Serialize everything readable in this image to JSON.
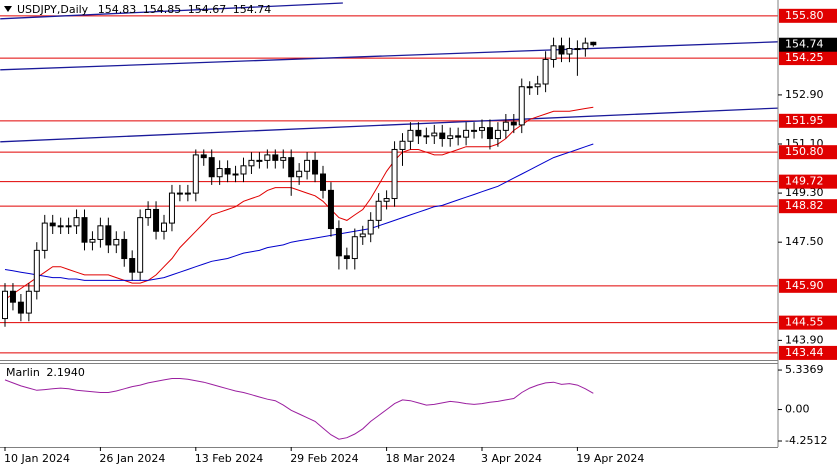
{
  "chart_data": [
    {
      "type": "candlestick",
      "title": "USDJPY,Daily",
      "categories": [
        "10 Jan 2024",
        null,
        null,
        null,
        null,
        null,
        null,
        null,
        null,
        null,
        null,
        null,
        "26 Jan 2024",
        null,
        null,
        null,
        null,
        null,
        null,
        null,
        null,
        null,
        null,
        null,
        "13 Feb 2024",
        null,
        null,
        null,
        null,
        null,
        null,
        null,
        null,
        null,
        null,
        null,
        "29 Feb 2024",
        null,
        null,
        null,
        null,
        null,
        null,
        null,
        null,
        null,
        null,
        null,
        "18 Mar 2024",
        null,
        null,
        null,
        null,
        null,
        null,
        null,
        null,
        null,
        null,
        null,
        "3 Apr 2024",
        null,
        null,
        null,
        null,
        null,
        null,
        null,
        null,
        null,
        null,
        null,
        "19 Apr 2024",
        null,
        null
      ],
      "open": [
        144.7,
        145.7,
        145.3,
        144.9,
        145.7,
        147.2,
        148.2,
        148.1,
        148.1,
        148.1,
        148.4,
        147.5,
        147.6,
        148.1,
        147.4,
        147.6,
        146.9,
        146.4,
        148.4,
        148.7,
        147.9,
        148.2,
        149.3,
        149.3,
        149.3,
        150.7,
        150.6,
        149.9,
        150.2,
        150.0,
        150.0,
        150.3,
        150.5,
        150.5,
        150.7,
        150.5,
        150.6,
        149.9,
        150.1,
        150.5,
        150.0,
        149.4,
        148.0,
        147.0,
        146.9,
        147.7,
        147.8,
        148.3,
        149.0,
        149.1,
        150.9,
        151.2,
        151.6,
        151.4,
        151.4,
        151.5,
        151.3,
        151.4,
        151.35,
        151.6,
        151.6,
        151.7,
        151.3,
        151.6,
        151.9,
        151.8,
        153.2,
        153.2,
        153.3,
        154.2,
        154.7,
        154.4,
        154.6,
        154.6,
        154.83
      ],
      "high": [
        146.0,
        146.0,
        145.6,
        146.0,
        147.5,
        148.5,
        148.5,
        148.4,
        148.4,
        148.7,
        148.7,
        147.9,
        148.4,
        148.4,
        147.9,
        147.9,
        147.2,
        148.7,
        149.0,
        149.0,
        148.5,
        149.6,
        149.6,
        149.6,
        150.9,
        150.9,
        150.9,
        150.5,
        150.5,
        150.3,
        150.6,
        150.8,
        150.8,
        150.9,
        150.9,
        150.9,
        150.9,
        150.4,
        150.8,
        150.8,
        150.3,
        149.7,
        148.3,
        147.3,
        148.0,
        148.1,
        148.6,
        149.3,
        149.4,
        151.2,
        151.5,
        151.9,
        151.9,
        151.7,
        151.8,
        151.8,
        151.7,
        151.7,
        151.9,
        151.9,
        152.0,
        152.0,
        151.9,
        152.2,
        152.2,
        153.5,
        153.4,
        153.6,
        154.5,
        155.0,
        155.0,
        155.0,
        154.9,
        155.0,
        154.85
      ],
      "low": [
        144.4,
        145.0,
        144.6,
        144.6,
        145.4,
        146.9,
        147.8,
        147.8,
        147.8,
        147.8,
        147.2,
        147.2,
        147.3,
        147.1,
        147.1,
        146.6,
        146.1,
        146.1,
        148.1,
        147.6,
        147.6,
        147.9,
        149.0,
        149.0,
        149.0,
        150.3,
        149.6,
        149.6,
        149.7,
        149.7,
        149.7,
        150.0,
        150.2,
        150.2,
        150.2,
        150.2,
        149.2,
        149.6,
        149.8,
        149.7,
        149.1,
        147.7,
        146.5,
        146.5,
        146.5,
        147.4,
        147.5,
        148.0,
        148.7,
        148.8,
        150.3,
        150.9,
        151.1,
        151.1,
        151.1,
        151.0,
        151.0,
        151.05,
        151.05,
        151.3,
        151.3,
        150.9,
        151.0,
        151.3,
        151.5,
        151.5,
        152.9,
        152.9,
        153.0,
        153.9,
        154.1,
        154.1,
        153.6,
        154.3,
        154.67
      ],
      "close": [
        145.7,
        145.3,
        144.9,
        145.7,
        147.2,
        148.2,
        148.1,
        148.1,
        148.1,
        148.4,
        147.5,
        147.6,
        148.1,
        147.4,
        147.6,
        146.9,
        146.4,
        148.4,
        148.7,
        147.9,
        148.2,
        149.3,
        149.3,
        149.3,
        150.7,
        150.6,
        149.9,
        150.2,
        150.0,
        150.0,
        150.3,
        150.5,
        150.5,
        150.7,
        150.5,
        150.6,
        149.9,
        150.1,
        150.5,
        150.0,
        149.4,
        148.0,
        147.0,
        146.9,
        147.7,
        147.8,
        148.3,
        149.0,
        149.1,
        150.9,
        151.2,
        151.6,
        151.4,
        151.4,
        151.5,
        151.3,
        151.4,
        151.35,
        151.6,
        151.6,
        151.7,
        151.3,
        151.6,
        151.9,
        151.8,
        153.2,
        153.2,
        153.3,
        154.2,
        154.7,
        154.4,
        154.6,
        154.6,
        154.8,
        154.74
      ],
      "up_color": "#ffffff",
      "down_color": "#000000",
      "ylim": [
        143.18,
        156.38
      ],
      "yticks": [
        {
          "value": 152.9,
          "label": "152.90"
        },
        {
          "value": 151.1,
          "label": "151.10"
        },
        {
          "value": 149.3,
          "label": "149.30"
        },
        {
          "value": 147.5,
          "label": "147.50"
        },
        {
          "value": 143.9,
          "label": "143.90"
        }
      ],
      "levels": [
        {
          "value": 155.8,
          "label": "155.80"
        },
        {
          "value": 154.25,
          "label": "154.25"
        },
        {
          "value": 151.95,
          "label": "151.95"
        },
        {
          "value": 150.8,
          "label": "150.80"
        },
        {
          "value": 149.72,
          "label": "149.72"
        },
        {
          "value": 148.82,
          "label": "148.82"
        },
        {
          "value": 145.9,
          "label": "145.90"
        },
        {
          "value": 144.55,
          "label": "144.55"
        },
        {
          "value": 143.44,
          "label": "143.44"
        }
      ],
      "level_color": "#e00000",
      "series": [
        {
          "color": "#e00000",
          "values": [
            145.4,
            145.6,
            145.8,
            146.0,
            146.2,
            146.4,
            146.6,
            146.6,
            146.5,
            146.4,
            146.3,
            146.3,
            146.3,
            146.3,
            146.2,
            146.1,
            146.0,
            146.0,
            146.1,
            146.3,
            146.6,
            146.9,
            147.3,
            147.6,
            147.9,
            148.2,
            148.5,
            148.6,
            148.7,
            148.8,
            149.0,
            149.1,
            149.2,
            149.4,
            149.5,
            149.5,
            149.5,
            149.4,
            149.3,
            149.2,
            149.0,
            148.7,
            148.4,
            148.3,
            148.5,
            148.7,
            149.1,
            149.6,
            150.1,
            150.5,
            150.8,
            150.9,
            150.9,
            150.8,
            150.7,
            150.7,
            150.8,
            150.9,
            151.0,
            151.0,
            151.0,
            151.0,
            151.1,
            151.3,
            151.6,
            151.8,
            152.0,
            152.1,
            152.2,
            152.3,
            152.3,
            152.3,
            152.35,
            152.4,
            152.45
          ]
        },
        {
          "color": "#0000cc",
          "values": [
            146.5,
            146.45,
            146.4,
            146.35,
            146.3,
            146.25,
            146.2,
            146.2,
            146.15,
            146.15,
            146.1,
            146.1,
            146.1,
            146.1,
            146.1,
            146.1,
            146.1,
            146.1,
            146.1,
            146.15,
            146.2,
            146.3,
            146.4,
            146.5,
            146.6,
            146.7,
            146.8,
            146.85,
            146.9,
            147.0,
            147.1,
            147.15,
            147.2,
            147.3,
            147.35,
            147.4,
            147.5,
            147.55,
            147.6,
            147.65,
            147.7,
            147.75,
            147.8,
            147.85,
            147.9,
            147.95,
            148.0,
            148.1,
            148.2,
            148.3,
            148.4,
            148.5,
            148.6,
            148.7,
            148.8,
            148.85,
            148.95,
            149.05,
            149.15,
            149.25,
            149.35,
            149.45,
            149.55,
            149.7,
            149.85,
            150.0,
            150.15,
            150.3,
            150.45,
            150.6,
            150.7,
            150.8,
            150.9,
            151.0,
            151.1
          ]
        }
      ],
      "trendlines": [
        {
          "x": [
            -0.6,
            42.5
          ],
          "y": [
            155.69,
            156.27
          ],
          "color": "#1a1a9a"
        },
        {
          "x": [
            -0.6,
            97.5
          ],
          "y": [
            153.82,
            154.85
          ],
          "color": "#1a1a9a"
        },
        {
          "x": [
            -0.6,
            97.5
          ],
          "y": [
            151.18,
            152.42
          ],
          "color": "#1a1a9a"
        }
      ]
    },
    {
      "type": "line",
      "title": "Marlin",
      "ylim": [
        -5.06,
        6.29
      ],
      "yticks": [
        5.3369,
        {
          "value": 0,
          "label": "0.00"
        },
        -4.2512
      ],
      "series": [
        {
          "color": "#9b1fa0",
          "values": [
            4.0,
            3.6,
            3.2,
            2.9,
            2.6,
            2.7,
            2.8,
            2.9,
            2.8,
            2.6,
            2.5,
            2.4,
            2.3,
            2.3,
            2.5,
            2.8,
            3.1,
            3.3,
            3.6,
            3.8,
            4.0,
            4.2,
            4.2,
            4.1,
            3.9,
            3.7,
            3.4,
            3.1,
            2.8,
            2.5,
            2.3,
            2.0,
            1.7,
            1.4,
            1.2,
            0.6,
            -0.1,
            -0.6,
            -1.1,
            -1.6,
            -2.5,
            -3.4,
            -4.0,
            -3.8,
            -3.3,
            -2.6,
            -1.6,
            -0.8,
            0.0,
            0.8,
            1.3,
            1.2,
            0.9,
            0.6,
            0.7,
            0.9,
            1.1,
            1.0,
            0.8,
            0.7,
            0.8,
            1.0,
            1.1,
            1.3,
            1.5,
            2.3,
            2.9,
            3.3,
            3.6,
            3.7,
            3.4,
            3.5,
            3.3,
            2.8,
            2.194
          ],
          "value_labels": [
            null,
            null,
            null,
            null,
            null,
            null,
            null,
            null,
            null,
            null,
            null,
            null,
            null,
            null,
            null,
            null,
            null,
            null,
            null,
            null,
            null,
            null,
            null,
            null,
            null,
            null,
            null,
            null,
            null,
            null,
            null,
            null,
            null,
            null,
            null,
            null,
            null,
            null,
            null,
            null,
            null,
            null,
            null,
            null,
            null,
            null,
            null,
            null,
            null,
            null,
            null,
            null,
            null,
            null,
            null,
            null,
            null,
            null,
            null,
            null,
            null,
            null,
            null,
            null,
            null,
            null,
            null,
            null,
            null,
            null,
            null,
            null,
            null,
            null,
            "2.1940"
          ]
        }
      ]
    }
  ]
}
